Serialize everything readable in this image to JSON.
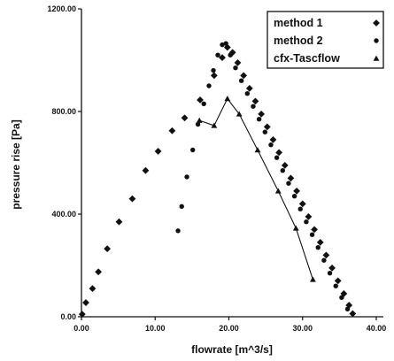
{
  "chart_data": {
    "type": "scatter",
    "xlabel": "flowrate [m^3/s]",
    "ylabel": "pressure rise [Pa]",
    "xlim": [
      0,
      40
    ],
    "ylim": [
      0,
      1200
    ],
    "x_ticks": [
      0,
      10,
      20,
      30,
      40
    ],
    "x_tick_labels": [
      "0.00",
      "10.00",
      "20.00",
      "30.00",
      "40.00"
    ],
    "y_ticks": [
      0,
      400,
      800,
      1200
    ],
    "y_tick_labels": [
      "0.00",
      "400.00",
      "800.00",
      "1200.00"
    ],
    "grid": false,
    "legend_position": "top-right",
    "series": [
      {
        "name": "method 1",
        "marker": "diamond",
        "line": false,
        "color": "#111111",
        "points": [
          [
            0.1,
            10
          ],
          [
            0.6,
            55
          ],
          [
            1.5,
            110
          ],
          [
            2.3,
            175
          ],
          [
            3.5,
            265
          ],
          [
            5.1,
            370
          ],
          [
            6.9,
            460
          ],
          [
            8.7,
            570
          ],
          [
            10.4,
            645
          ],
          [
            12.3,
            725
          ],
          [
            14.0,
            775
          ],
          [
            16.1,
            845
          ],
          [
            18.0,
            940
          ],
          [
            19.1,
            1010
          ],
          [
            19.8,
            1050
          ],
          [
            20.5,
            1030
          ],
          [
            21.2,
            990
          ],
          [
            22.0,
            940
          ],
          [
            22.8,
            890
          ],
          [
            23.6,
            840
          ],
          [
            24.4,
            790
          ],
          [
            25.2,
            740
          ],
          [
            26.0,
            690
          ],
          [
            26.8,
            640
          ],
          [
            27.6,
            590
          ],
          [
            28.4,
            540
          ],
          [
            29.2,
            490
          ],
          [
            30.0,
            440
          ],
          [
            30.8,
            390
          ],
          [
            31.6,
            340
          ],
          [
            32.4,
            290
          ],
          [
            33.2,
            240
          ],
          [
            34.0,
            190
          ],
          [
            34.8,
            140
          ],
          [
            35.6,
            90
          ],
          [
            36.3,
            45
          ],
          [
            36.8,
            12
          ]
        ]
      },
      {
        "name": "method 2",
        "marker": "circle",
        "line": false,
        "color": "#111111",
        "points": [
          [
            13.1,
            335
          ],
          [
            13.6,
            430
          ],
          [
            14.3,
            545
          ],
          [
            15.1,
            650
          ],
          [
            15.8,
            750
          ],
          [
            16.6,
            830
          ],
          [
            17.3,
            900
          ],
          [
            17.9,
            960
          ],
          [
            18.5,
            1020
          ],
          [
            19.1,
            1060
          ],
          [
            19.6,
            1065
          ],
          [
            20.2,
            1020
          ],
          [
            20.9,
            970
          ],
          [
            21.7,
            920
          ],
          [
            22.5,
            870
          ],
          [
            23.3,
            820
          ],
          [
            24.1,
            770
          ],
          [
            24.9,
            720
          ],
          [
            25.7,
            670
          ],
          [
            26.5,
            620
          ],
          [
            27.3,
            570
          ],
          [
            28.1,
            520
          ],
          [
            28.9,
            470
          ],
          [
            29.7,
            420
          ],
          [
            30.5,
            370
          ],
          [
            31.3,
            320
          ],
          [
            32.1,
            270
          ],
          [
            32.9,
            220
          ],
          [
            33.7,
            170
          ],
          [
            34.5,
            120
          ],
          [
            35.3,
            75
          ],
          [
            36.1,
            30
          ]
        ]
      },
      {
        "name": "cfx-Tascflow",
        "marker": "triangle",
        "line": true,
        "color": "#111111",
        "points": [
          [
            16.0,
            765
          ],
          [
            18.0,
            745
          ],
          [
            19.8,
            850
          ],
          [
            21.4,
            790
          ],
          [
            23.9,
            650
          ],
          [
            26.7,
            490
          ],
          [
            29.1,
            345
          ],
          [
            31.4,
            145
          ]
        ]
      }
    ]
  }
}
